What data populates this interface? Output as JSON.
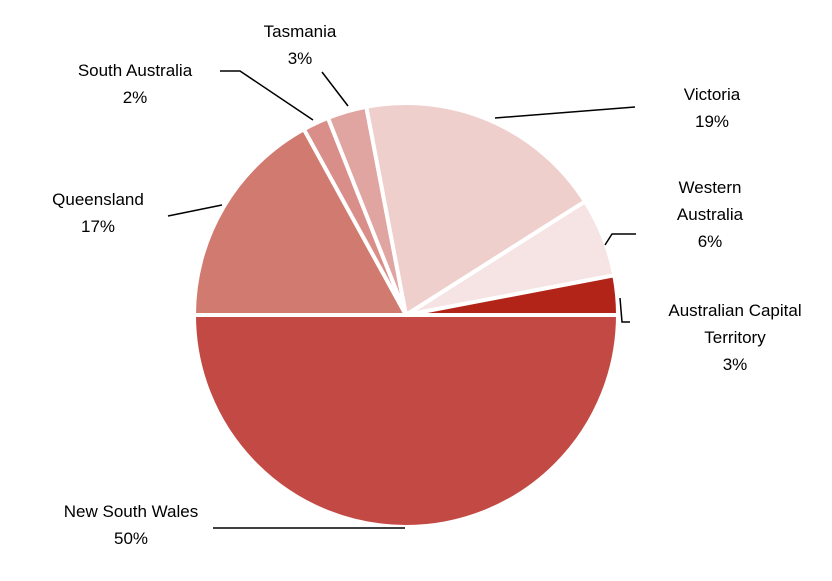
{
  "chart_data": {
    "type": "pie",
    "categories": [
      "New South Wales",
      "Queensland",
      "South Australia",
      "Tasmania",
      "Victoria",
      "Western Australia",
      "Australian Capital Territory"
    ],
    "values": [
      50,
      17,
      2,
      3,
      19,
      6,
      3
    ],
    "value_labels": [
      "50%",
      "17%",
      "2%",
      "3%",
      "19%",
      "6%",
      "3%"
    ],
    "colors": [
      "#c34a44",
      "#d07a70",
      "#d98e89",
      "#e0a4a1",
      "#efcfcc",
      "#f5e4e3",
      "#b22418"
    ]
  }
}
